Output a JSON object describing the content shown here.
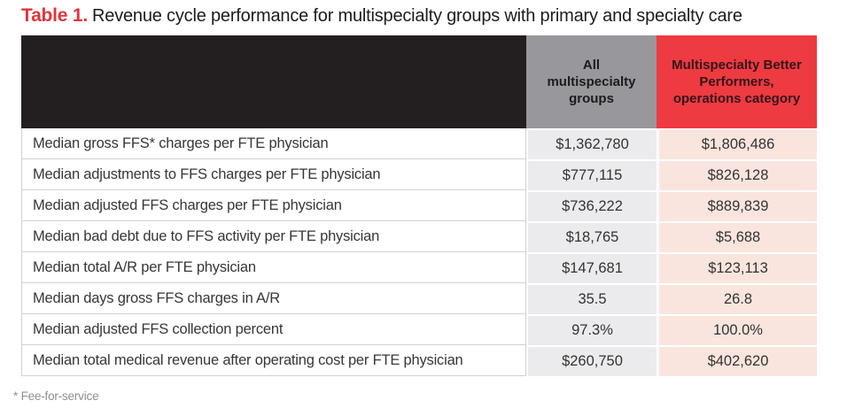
{
  "chart_data": {
    "type": "table",
    "title_label": "Table 1.",
    "title": "Revenue cycle performance for multispecialty groups with primary and specialty care",
    "columns": [
      "All multispecialty groups",
      "Multispecialty Better Performers, operations category"
    ],
    "rows": [
      {
        "metric": "Median gross FFS* charges per FTE physician",
        "all": "$1,362,780",
        "better": "$1,806,486"
      },
      {
        "metric": "Median adjustments to FFS charges per FTE physician",
        "all": "$777,115",
        "better": "$826,128"
      },
      {
        "metric": "Median adjusted FFS charges per FTE physician",
        "all": "$736,222",
        "better": "$889,839"
      },
      {
        "metric": "Median bad debt due to FFS activity per FTE physician",
        "all": "$18,765",
        "better": "$5,688"
      },
      {
        "metric": "Median total A/R per FTE physician",
        "all": "$147,681",
        "better": "$123,113"
      },
      {
        "metric": "Median days gross FFS charges in A/R",
        "all": "35.5",
        "better": "26.8"
      },
      {
        "metric": "Median adjusted FFS collection percent",
        "all": "97.3%",
        "better": "100.0%"
      },
      {
        "metric": "Median total medical revenue after operating cost per FTE physician",
        "all": "$260,750",
        "better": "$402,620"
      }
    ],
    "footnote": "* Fee-for-service"
  },
  "colors": {
    "header_black": "#231f20",
    "header_gray": "#98979c",
    "header_red": "#ee3a41",
    "cell_gray": "#ebebed",
    "cell_pink": "#f9e5de",
    "border_gray": "#d2d2d4",
    "title_red": "#de353d",
    "text_dark": "#333333",
    "footnote_gray": "#8f8f8f"
  }
}
